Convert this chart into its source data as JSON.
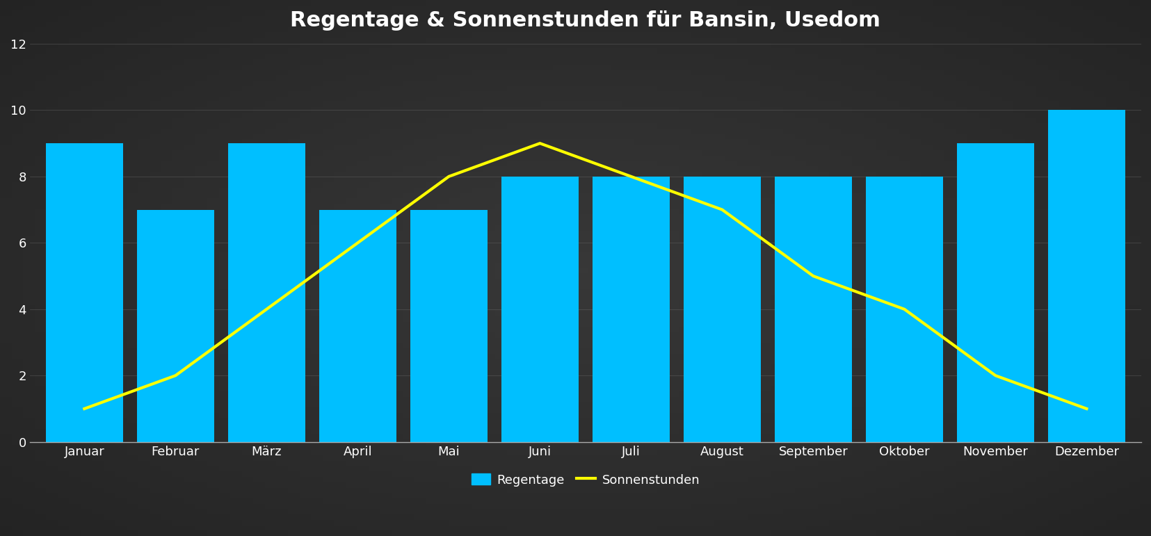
{
  "title": "Regentage & Sonnenstunden für Bansin, Usedom",
  "months": [
    "Januar",
    "Februar",
    "März",
    "April",
    "Mai",
    "Juni",
    "Juli",
    "August",
    "September",
    "Oktober",
    "November",
    "Dezember"
  ],
  "regentage": [
    9,
    7,
    9,
    7,
    7,
    8,
    8,
    8,
    8,
    8,
    9,
    10
  ],
  "sonnenstunden": [
    1,
    2,
    4,
    6,
    8,
    9,
    8,
    7,
    5,
    4,
    2,
    1
  ],
  "bar_color": "#00BFFF",
  "line_color": "#FFFF00",
  "bg_dark": "#1e1e1e",
  "bg_mid": "#333333",
  "bg_plot": "#2a2a2a",
  "title_color": "#ffffff",
  "tick_color": "#ffffff",
  "grid_color": "#666666",
  "axis_color": "#aaaaaa",
  "ylim": [
    0,
    12
  ],
  "yticks": [
    0,
    2,
    4,
    6,
    8,
    10,
    12
  ],
  "title_fontsize": 22,
  "tick_fontsize": 13,
  "legend_fontsize": 13,
  "bar_width": 0.85,
  "line_width": 3.0,
  "legend_bar_label": "Regentage",
  "legend_line_label": "Sonnenstunden"
}
